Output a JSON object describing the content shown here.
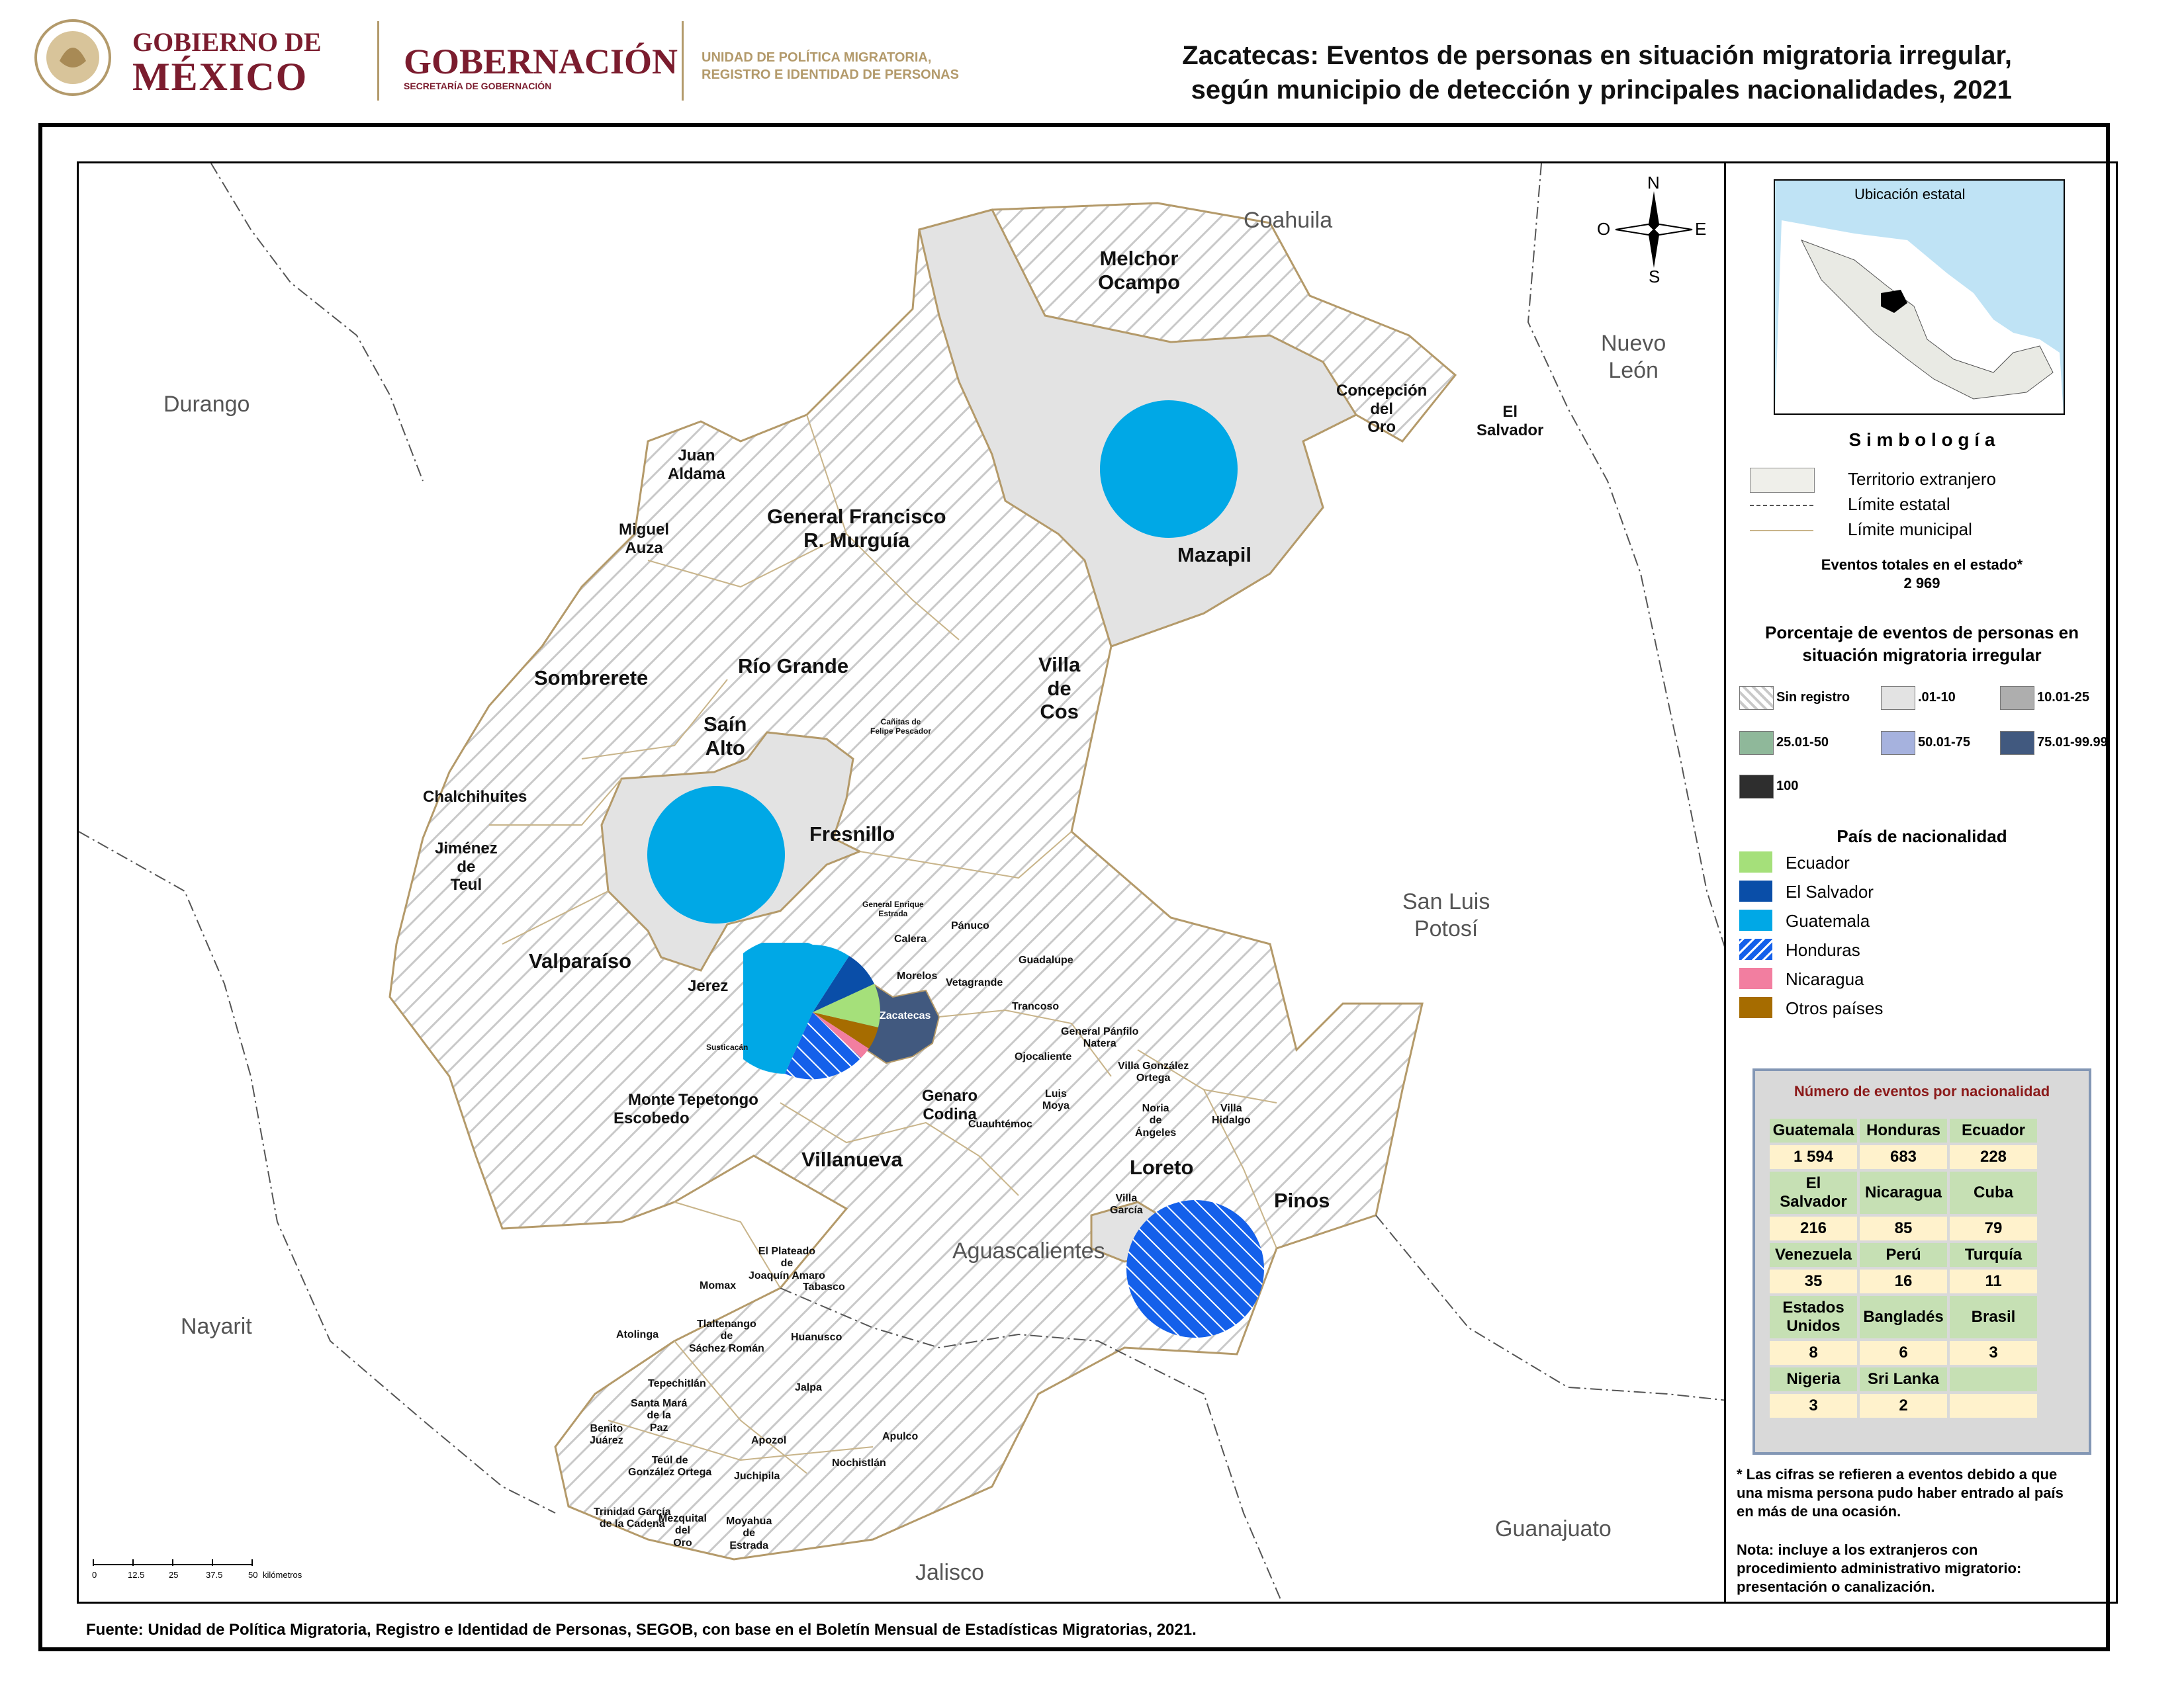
{
  "header": {
    "gov_line1": "GOBIERNO DE",
    "gov_line2": "MÉXICO",
    "ministry": "GOBERNACIÓN",
    "ministry_sub": "SECRETARÍA DE GOBERNACIÓN",
    "unit_line1": "UNIDAD DE POLÍTICA MIGRATORIA,",
    "unit_line2": "REGISTRO E IDENTIDAD DE PERSONAS",
    "seal_text": "ESTADOS UNIDOS MEXICANOS"
  },
  "title": {
    "line1": "Zacatecas: Eventos de personas en situación migratoria irregular,",
    "line2": "según municipio de detección y principales nacionalidades, 2021"
  },
  "compass": {
    "n": "N",
    "s": "S",
    "e": "E",
    "o": "O"
  },
  "neighbors": {
    "coahuila": "Coahuila",
    "nuevo_leon": "Nuevo\nLeón",
    "durango": "Durango",
    "san_luis_potosi": "San Luis\nPotosí",
    "aguascalientes": "Aguascalientes",
    "nayarit": "Nayarit",
    "jalisco": "Jalisco",
    "guanajuato": "Guanajuato"
  },
  "municipalities": {
    "melchor_ocampo": "Melchor\nOcampo",
    "concepcion_del_oro": "Concepción\ndel\nOro",
    "el_salvador": "El\nSalvador",
    "juan_aldama": "Juan\nAldama",
    "miguel_auza": "Miguel\nAuza",
    "general_francisco_murguia": "General Francisco\nR. Murguía",
    "mazapil": "Mazapil",
    "sombrerete": "Sombrerete",
    "rio_grande": "Río Grande",
    "villa_de_cos": "Villa\nde\nCos",
    "sain_alto": "Saín\nAlto",
    "cañitas": "Cañitas de\nFelipe Pescador",
    "chalchihuites": "Chalchihuites",
    "fresnillo": "Fresnillo",
    "jimenez_del_teul": "Jiménez\nde\nTeul",
    "general_enrique_estrada": "General Enrique\nEstrada",
    "calera": "Calera",
    "panuco": "Pánuco",
    "valparaiso": "Valparaíso",
    "morelos": "Morelos",
    "guadalupe": "Guadalupe",
    "jerez": "Jerez",
    "vetagrande": "Vetagrande",
    "zacatecas": "Zacatecas",
    "trancoso": "Trancoso",
    "susticacan": "Susticacán",
    "general_panfilo_natera": "General Pánfilo\nNatera",
    "ojocaliente": "Ojocaliente",
    "villa_gonzalez_ortega": "Villa González\nOrtega",
    "monte_escobedo": "Monte\nEscobedo",
    "tepetongo": "Tepetongo",
    "genaro_codina": "Genaro\nCodina",
    "luis_moya": "Luis\nMoya",
    "noria_de_angeles": "Noria\nde\nÁngeles",
    "villa_hidalgo": "Villa\nHidalgo",
    "cuauhtemoc": "Cuauhtémoc",
    "villanueva": "Villanueva",
    "loreto": "Loreto",
    "pinos": "Pinos",
    "villa_garcia": "Villa\nGarcía",
    "el_plateado": "El Plateado\nde\nJoaquín Amaro",
    "momax": "Momax",
    "tabasco": "Tabasco",
    "tlaltenango": "Tlaltenango\nde\nSáchez Román",
    "atolinga": "Atolinga",
    "huanusco": "Huanusco",
    "tepechitlan": "Tepechitlán",
    "jalpa": "Jalpa",
    "santa_maria": "Santa Mará\nde la\nPaz",
    "benito_juarez": "Benito\nJuárez",
    "apozol": "Apozol",
    "apulco": "Apulco",
    "teul": "Teúl de\nGonzález Ortega",
    "nochistlan": "Nochistlán",
    "juchipila": "Juchipila",
    "trinidad_garcia": "Trinidad García\nde la Cadena",
    "mezquital": "Mezquital\ndel\nOro",
    "moyahua": "Moyahua\nde\nEstrada"
  },
  "scale": {
    "ticks": [
      "0",
      "12.5",
      "25",
      "37.5",
      "50"
    ],
    "unit": "kilómetros"
  },
  "sidebar": {
    "inset_title": "Ubicación estatal",
    "simbologia": "S i m b o l o g í a",
    "sym_items": [
      "Territorio extranjero",
      "Límite estatal",
      "Límite municipal"
    ],
    "total_label": "Eventos totales en el estado*",
    "total_value": "2 969",
    "pct_title": "Porcentaje de eventos de personas en\nsituación migratoria irregular",
    "pct_classes": [
      {
        "label": "Sin registro",
        "color": "hatch"
      },
      {
        "label": ".01-10",
        "color": "#e3e3e3"
      },
      {
        "label": "10.01-25",
        "color": "#aeaeae"
      },
      {
        "label": "25.01-50",
        "color": "#8fb89a"
      },
      {
        "label": "50.01-75",
        "color": "#a6b2de"
      },
      {
        "label": "75.01-99.99",
        "color": "#41597f"
      },
      {
        "label": "100",
        "color": "#2e2e2e"
      }
    ],
    "nat_title": "País de nacionalidad",
    "nationalities": [
      {
        "label": "Ecuador",
        "color": "#a5e07a"
      },
      {
        "label": "El Salvador",
        "color": "#0a4ea8"
      },
      {
        "label": "Guatemala",
        "color": "#00a8e6"
      },
      {
        "label": "Honduras",
        "color": "#1460ea"
      },
      {
        "label": "Nicaragua",
        "color": "#f27ea0"
      },
      {
        "label": "Otros países",
        "color": "#a66c00"
      }
    ],
    "table_title": "Número de eventos por nacionalidad",
    "table": [
      [
        "Guatemala",
        "Honduras",
        "Ecuador"
      ],
      [
        "1 594",
        "683",
        "228"
      ],
      [
        "El Salvador",
        "Nicaragua",
        "Cuba"
      ],
      [
        "216",
        "85",
        "79"
      ],
      [
        "Venezuela",
        "Perú",
        "Turquía"
      ],
      [
        "35",
        "16",
        "11"
      ],
      [
        "Estados\nUnidos",
        "Bangladés",
        "Brasil"
      ],
      [
        "8",
        "6",
        "3"
      ],
      [
        "Nigeria",
        "Sri Lanka",
        ""
      ],
      [
        "3",
        "2",
        ""
      ]
    ],
    "note1": "* Las cifras se refieren a eventos debido a que una misma persona pudo haber entrado al país en más de una ocasión.",
    "note2": "Nota: incluye a los extranjeros con procedimiento administrativo migratorio: presentación o canalización."
  },
  "source": "Fuente: Unidad de Política Migratoria, Registro e Identidad de Personas, SEGOB, con base en el Boletín Mensual de Estadísticas Migratorias, 2021."
}
